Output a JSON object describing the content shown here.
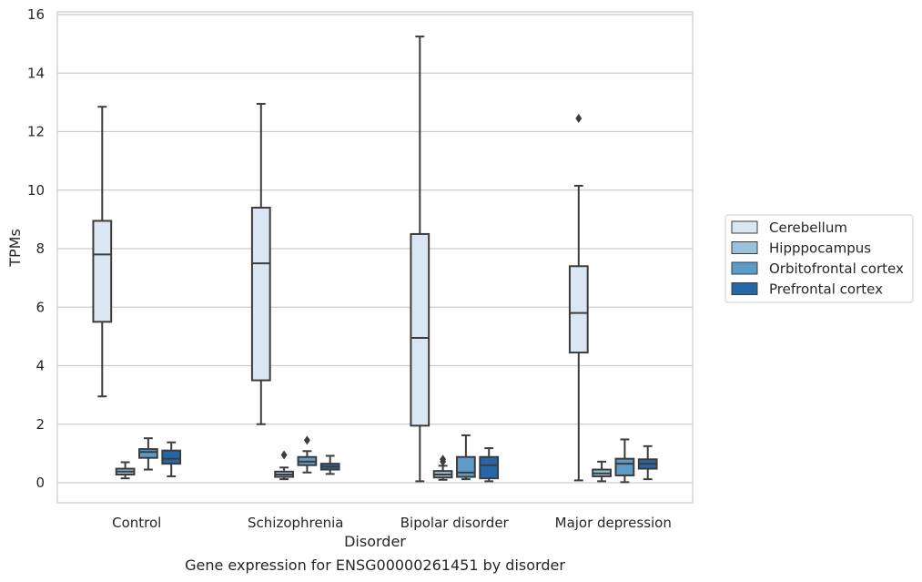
{
  "chart_data": {
    "type": "boxplot",
    "title": "",
    "caption": "Gene expression for ENSG00000261451 by disorder",
    "xlabel": "Disorder",
    "ylabel": "TPMs",
    "ylim": [
      -0.7,
      16.1
    ],
    "yticks": [
      0,
      2,
      4,
      6,
      8,
      10,
      12,
      14,
      16
    ],
    "categories": [
      "Control",
      "Schizophrenia",
      "Bipolar disorder",
      "Major depression"
    ],
    "grid": true,
    "legend_position": "right",
    "series": [
      {
        "name": "Cerebellum",
        "color": "#dbe6f3",
        "boxes": [
          {
            "min": 2.95,
            "q1": 5.5,
            "median": 7.8,
            "q3": 8.95,
            "max": 12.85,
            "outliers": []
          },
          {
            "min": 2.0,
            "q1": 3.5,
            "median": 7.5,
            "q3": 9.4,
            "max": 12.95,
            "outliers": []
          },
          {
            "min": 0.05,
            "q1": 1.95,
            "median": 4.95,
            "q3": 8.5,
            "max": 15.25,
            "outliers": []
          },
          {
            "min": 0.08,
            "q1": 4.45,
            "median": 5.8,
            "q3": 7.4,
            "max": 10.15,
            "outliers": [
              12.45
            ]
          }
        ]
      },
      {
        "name": "Hipppocampus",
        "color": "#9ac1d9",
        "boxes": [
          {
            "min": 0.15,
            "q1": 0.28,
            "median": 0.38,
            "q3": 0.48,
            "max": 0.7,
            "outliers": []
          },
          {
            "min": 0.12,
            "q1": 0.2,
            "median": 0.28,
            "q3": 0.38,
            "max": 0.52,
            "outliers": [
              0.95
            ]
          },
          {
            "min": 0.1,
            "q1": 0.18,
            "median": 0.28,
            "q3": 0.4,
            "max": 0.58,
            "outliers": [
              0.72,
              0.8
            ]
          },
          {
            "min": 0.05,
            "q1": 0.22,
            "median": 0.32,
            "q3": 0.45,
            "max": 0.72,
            "outliers": []
          }
        ]
      },
      {
        "name": "Orbitofrontal cortex",
        "color": "#5d9cc9",
        "boxes": [
          {
            "min": 0.45,
            "q1": 0.85,
            "median": 1.05,
            "q3": 1.15,
            "max": 1.52,
            "outliers": []
          },
          {
            "min": 0.35,
            "q1": 0.6,
            "median": 0.72,
            "q3": 0.88,
            "max": 1.08,
            "outliers": [
              1.45
            ]
          },
          {
            "min": 0.12,
            "q1": 0.2,
            "median": 0.35,
            "q3": 0.88,
            "max": 1.62,
            "outliers": []
          },
          {
            "min": 0.02,
            "q1": 0.25,
            "median": 0.65,
            "q3": 0.82,
            "max": 1.48,
            "outliers": []
          }
        ]
      },
      {
        "name": "Prefrontal cortex",
        "color": "#2466a8",
        "boxes": [
          {
            "min": 0.22,
            "q1": 0.65,
            "median": 0.82,
            "q3": 1.1,
            "max": 1.38,
            "outliers": []
          },
          {
            "min": 0.3,
            "q1": 0.45,
            "median": 0.55,
            "q3": 0.65,
            "max": 0.92,
            "outliers": []
          },
          {
            "min": 0.05,
            "q1": 0.15,
            "median": 0.6,
            "q3": 0.88,
            "max": 1.18,
            "outliers": []
          },
          {
            "min": 0.12,
            "q1": 0.48,
            "median": 0.65,
            "q3": 0.8,
            "max": 1.25,
            "outliers": []
          }
        ]
      }
    ]
  }
}
